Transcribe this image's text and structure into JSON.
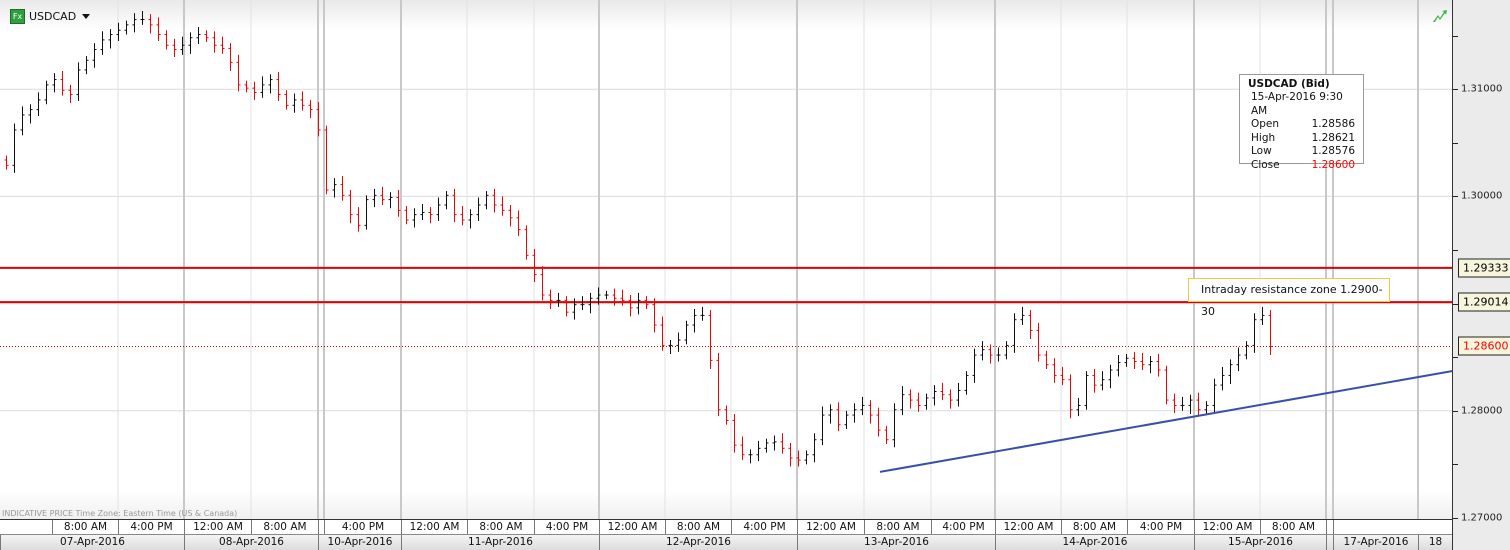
{
  "header": {
    "symbol": "USDCAD",
    "badge": "Fx"
  },
  "footer_note": "INDICATIVE PRICE   Time Zone: Eastern Time (US & Canada)",
  "info_box": {
    "title": "USDCAD (Bid)",
    "datetime": "15-Apr-2016 9:30 AM",
    "rows": [
      {
        "label": "Open",
        "value": "1.28586"
      },
      {
        "label": "High",
        "value": "1.28621"
      },
      {
        "label": "Low",
        "value": "1.28576"
      },
      {
        "label": "Close",
        "value": "1.28600"
      }
    ]
  },
  "annotation": "Intraday resistance zone 1.2900-30",
  "colors": {
    "up": "#111111",
    "down": "#ff0000",
    "level_line": "#e00000",
    "trendline": "#3a4fa8",
    "grid": "#d8d8d8"
  },
  "y_axis": {
    "ticks": [
      "1.31000",
      "1.30000",
      "1.28000",
      "1.27000"
    ],
    "tick_values": [
      1.31,
      1.3,
      1.28,
      1.27
    ],
    "range": [
      1.27,
      1.3183
    ]
  },
  "price_labels": [
    {
      "text": "1.29333",
      "value": 1.29333,
      "style": "solid"
    },
    {
      "text": "1.29014",
      "value": 1.29014,
      "style": "solid"
    },
    {
      "text": "1.28600",
      "value": 1.286,
      "style": "dotted"
    }
  ],
  "trendline": {
    "from": 1.2743,
    "to": 1.2837
  },
  "time_axis": {
    "times": [
      "8:00 AM",
      "4:00 PM",
      "12:00 AM",
      "8:00 AM",
      "",
      "4:00 PM",
      "12:00 AM",
      "8:00 AM",
      "4:00 PM",
      "12:00 AM",
      "8:00 AM",
      "4:00 PM",
      "12:00 AM",
      "8:00 AM",
      "4:00 PM",
      "12:00 AM",
      "8:00 AM",
      "4:00 PM",
      "12:00 AM",
      "8:00 AM",
      "",
      ""
    ],
    "dates": [
      "07-Apr-2016",
      "08-Apr-2016",
      "10-Apr-2016",
      "11-Apr-2016",
      "12-Apr-2016",
      "13-Apr-2016",
      "14-Apr-2016",
      "15-Apr-2016",
      "",
      "17-Apr-2016",
      "18"
    ]
  },
  "chart_data": {
    "type": "ohlc",
    "series_name": "USDCAD (Bid)",
    "closes": [
      1.3029,
      1.3062,
      1.3076,
      1.3081,
      1.309,
      1.3104,
      1.3109,
      1.3099,
      1.3095,
      1.3118,
      1.3127,
      1.3137,
      1.3146,
      1.3151,
      1.3155,
      1.316,
      1.3165,
      1.3165,
      1.316,
      1.3151,
      1.3141,
      1.3137,
      1.3141,
      1.3148,
      1.3151,
      1.3148,
      1.3141,
      1.3138,
      1.3125,
      1.3104,
      1.3101,
      1.3097,
      1.3104,
      1.3109,
      1.3095,
      1.3085,
      1.309,
      1.3085,
      1.3081,
      1.3062,
      1.3006,
      1.3011,
      1.3001,
      1.2983,
      1.2973,
      1.2997,
      1.3001,
      1.2997,
      1.2999,
      1.2987,
      1.2978,
      1.2983,
      1.2985,
      1.2983,
      1.2992,
      1.3001,
      1.2983,
      1.2978,
      1.2983,
      1.2992,
      1.3001,
      1.2992,
      1.2987,
      1.298,
      1.2969,
      1.2945,
      1.2927,
      1.2908,
      1.2903,
      1.2903,
      1.2892,
      1.2899,
      1.2899,
      1.2905,
      1.2908,
      1.2908,
      1.2905,
      1.2903,
      1.2896,
      1.2903,
      1.2899,
      1.288,
      1.2861,
      1.2861,
      1.2866,
      1.288,
      1.2889,
      1.2889,
      1.2847,
      1.2801,
      1.2791,
      1.2768,
      1.2759,
      1.2759,
      1.2765,
      1.277,
      1.2771,
      1.2765,
      1.2756,
      1.2754,
      1.2759,
      1.2773,
      1.2796,
      1.2801,
      1.2787,
      1.2796,
      1.2801,
      1.2805,
      1.2796,
      1.2782,
      1.2773,
      1.2801,
      1.2815,
      1.281,
      1.2805,
      1.2812,
      1.2818,
      1.2815,
      1.281,
      1.2819,
      1.2833,
      1.2852,
      1.2857,
      1.2852,
      1.2852,
      1.2861,
      1.2885,
      1.2889,
      1.2875,
      1.2852,
      1.2843,
      1.2833,
      1.2829,
      1.2801,
      1.2805,
      1.2833,
      1.2824,
      1.2829,
      1.2838,
      1.2845,
      1.2849,
      1.2846,
      1.2843,
      1.2846,
      1.2838,
      1.281,
      1.2805,
      1.2805,
      1.281,
      1.2801,
      1.2805,
      1.2824,
      1.2833,
      1.2843,
      1.2852,
      1.2861,
      1.2885,
      1.2889,
      1.286
    ]
  }
}
